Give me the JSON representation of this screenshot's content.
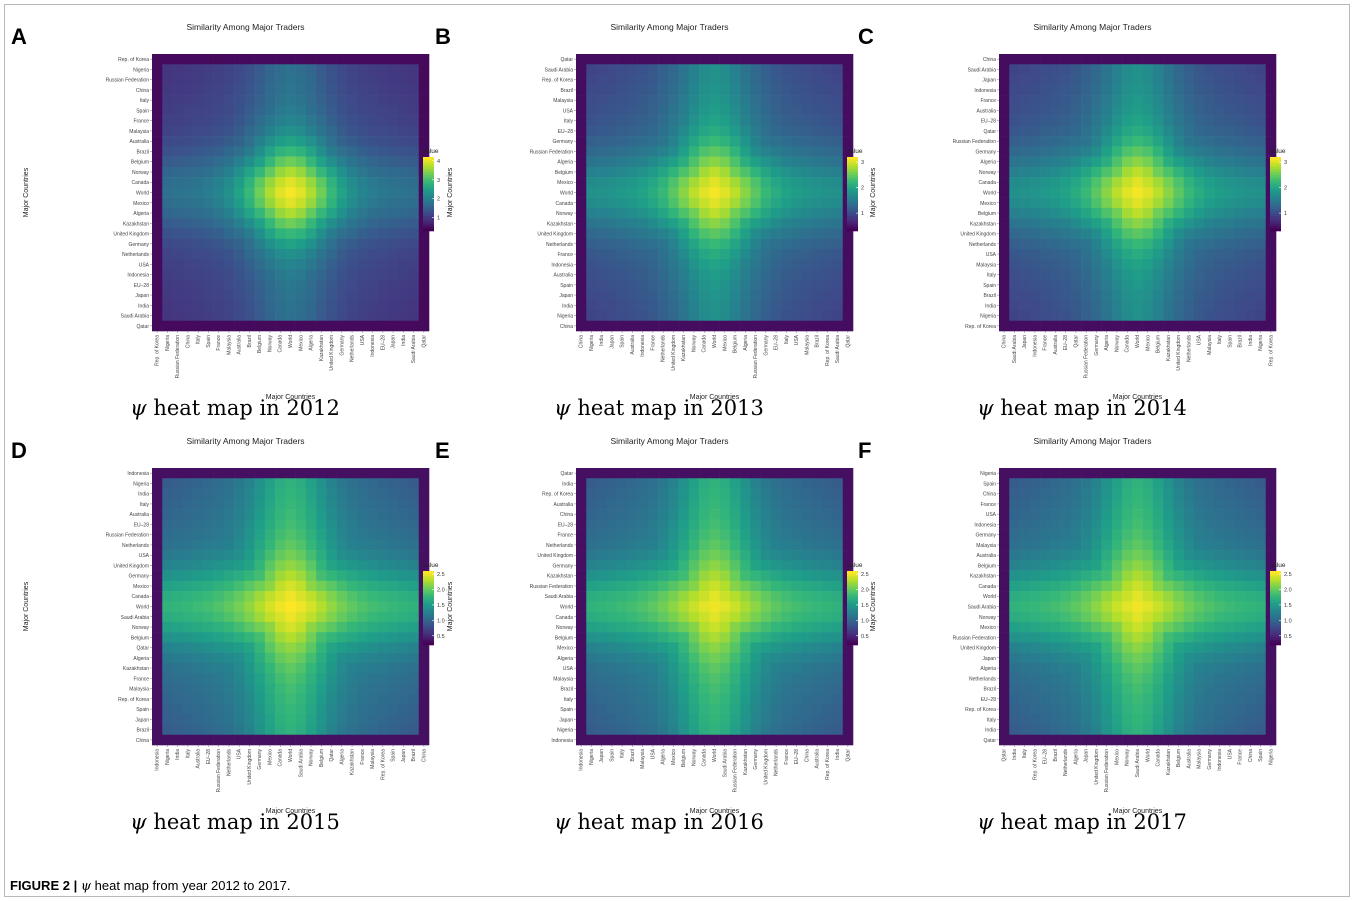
{
  "figure_caption": {
    "label": "FIGURE 2 |",
    "symbol": "ψ",
    "text": "heat map from year 2012 to 2017."
  },
  "chart_data": [
    {
      "panel": "A",
      "type": "heatmap",
      "title": "Similarity Among Major Traders",
      "xlabel": "Major Countries",
      "ylabel": "Major Countries",
      "caption_symbol": "ψ",
      "caption_text": "heat map in 2012",
      "legend": {
        "title": "value",
        "ticks": [
          "1",
          "2",
          "3",
          "4"
        ],
        "min": 0.3,
        "max": 4.2,
        "position": "right"
      },
      "countries": [
        "Qatar",
        "Saudi Arabia",
        "India",
        "Japan",
        "EU–28",
        "Indonesia",
        "USA",
        "Netherlands",
        "Germany",
        "United Kingdom",
        "Kazakhstan",
        "Algeria",
        "Mexico",
        "World",
        "Canada",
        "Norway",
        "Belgium",
        "Brazil",
        "Australia",
        "Malaysia",
        "France",
        "Spain",
        "Italy",
        "China",
        "Russian Federation",
        "Nigeria",
        "Rep. of Korea"
      ],
      "x_order": "reversed",
      "peak": 4.1,
      "border_value": 0.4
    },
    {
      "panel": "B",
      "type": "heatmap",
      "title": "Similarity Among Major Traders",
      "xlabel": "Major Countries",
      "ylabel": "Major Countries",
      "caption_symbol": "ψ",
      "caption_text": "heat map in 2013",
      "legend": {
        "title": "value",
        "ticks": [
          "1",
          "2",
          "3"
        ],
        "min": 0.3,
        "max": 3.2,
        "position": "right"
      },
      "countries": [
        "China",
        "Nigeria",
        "India",
        "Japan",
        "Spain",
        "Australia",
        "Indonesia",
        "France",
        "Netherlands",
        "United Kingdom",
        "Kazakhstan",
        "Norway",
        "Canada",
        "World",
        "Mexico",
        "Belgium",
        "Algeria",
        "Russian Federation",
        "Germany",
        "EU–28",
        "Italy",
        "USA",
        "Malaysia",
        "Brazil",
        "Rep. of Korea",
        "Saudi Arabia",
        "Qatar"
      ],
      "x_order": "same",
      "peak": 3.1,
      "border_value": 0.4
    },
    {
      "panel": "C",
      "type": "heatmap",
      "title": "Similarity Among Major Traders",
      "xlabel": "Major Countries",
      "ylabel": "Major Countries",
      "caption_symbol": "ψ",
      "caption_text": "heat map in 2014",
      "legend": {
        "title": "value",
        "ticks": [
          "1",
          "2",
          "3"
        ],
        "min": 0.3,
        "max": 3.2,
        "position": "right"
      },
      "countries": [
        "Rep. of Korea",
        "Nigeria",
        "India",
        "Brazil",
        "Spain",
        "Italy",
        "Malaysia",
        "USA",
        "Netherlands",
        "United Kingdom",
        "Kazakhstan",
        "Belgium",
        "Mexico",
        "World",
        "Canada",
        "Norway",
        "Algeria",
        "Germany",
        "Russian Federation",
        "Qatar",
        "EU–28",
        "Australia",
        "France",
        "Indonesia",
        "Japan",
        "Saudi Arabia",
        "China"
      ],
      "x_order": "reversed",
      "peak": 3.1,
      "border_value": 0.4
    },
    {
      "panel": "D",
      "type": "heatmap",
      "title": "Similarity Among Major Traders",
      "xlabel": "Major Countries",
      "ylabel": "Major Countries",
      "caption_symbol": "ψ",
      "caption_text": "heat map in 2015",
      "legend": {
        "title": "value",
        "ticks": [
          "0.5",
          "1.0",
          "1.5",
          "2.0",
          "2.5"
        ],
        "min": 0.2,
        "max": 2.6,
        "position": "right"
      },
      "countries": [
        "China",
        "Brazil",
        "Japan",
        "Spain",
        "Rep. of Korea",
        "Malaysia",
        "France",
        "Kazakhstan",
        "Algeria",
        "Qatar",
        "Belgium",
        "Norway",
        "Saudi Arabia",
        "World",
        "Canada",
        "Mexico",
        "Germany",
        "United Kingdom",
        "USA",
        "Netherlands",
        "Russian Federation",
        "EU–28",
        "Australia",
        "Italy",
        "India",
        "Nigeria",
        "Indonesia"
      ],
      "x_order": "reversed",
      "peak": 2.55,
      "border_value": 0.3
    },
    {
      "panel": "E",
      "type": "heatmap",
      "title": "Similarity Among Major Traders",
      "xlabel": "Major Countries",
      "ylabel": "Major Countries",
      "caption_symbol": "ψ",
      "caption_text": "heat map in 2016",
      "legend": {
        "title": "value",
        "ticks": [
          "0.5",
          "1.0",
          "1.5",
          "2.0",
          "2.5"
        ],
        "min": 0.2,
        "max": 2.6,
        "position": "right"
      },
      "countries": [
        "Indonesia",
        "Nigeria",
        "Japan",
        "Spain",
        "Italy",
        "Brazil",
        "Malaysia",
        "USA",
        "Algeria",
        "Mexico",
        "Belgium",
        "Norway",
        "Canada",
        "World",
        "Saudi Arabia",
        "Russian Federation",
        "Kazakhstan",
        "Germany",
        "United Kingdom",
        "Netherlands",
        "France",
        "EU–28",
        "China",
        "Australia",
        "Rep. of Korea",
        "India",
        "Qatar"
      ],
      "x_order": "same",
      "peak": 2.5,
      "border_value": 0.3
    },
    {
      "panel": "F",
      "type": "heatmap",
      "title": "Similarity Among Major Traders",
      "xlabel": "Major Countries",
      "ylabel": "Major Countries",
      "caption_symbol": "ψ",
      "caption_text": "heat map in 2017",
      "legend": {
        "title": "value",
        "ticks": [
          "0.5",
          "1.0",
          "1.5",
          "2.0",
          "2.5"
        ],
        "min": 0.2,
        "max": 2.6,
        "position": "right"
      },
      "countries": [
        "Qatar",
        "India",
        "Italy",
        "Rep. of Korea",
        "EU–28",
        "Brazil",
        "Netherlands",
        "Algeria",
        "Japan",
        "United Kingdom",
        "Russian Federation",
        "Mexico",
        "Norway",
        "Saudi Arabia",
        "World",
        "Canada",
        "Kazakhstan",
        "Belgium",
        "Australia",
        "Malaysia",
        "Germany",
        "Indonesia",
        "USA",
        "France",
        "China",
        "Spain",
        "Nigeria"
      ],
      "x_order": "same",
      "peak": 2.5,
      "border_value": 0.3
    }
  ]
}
